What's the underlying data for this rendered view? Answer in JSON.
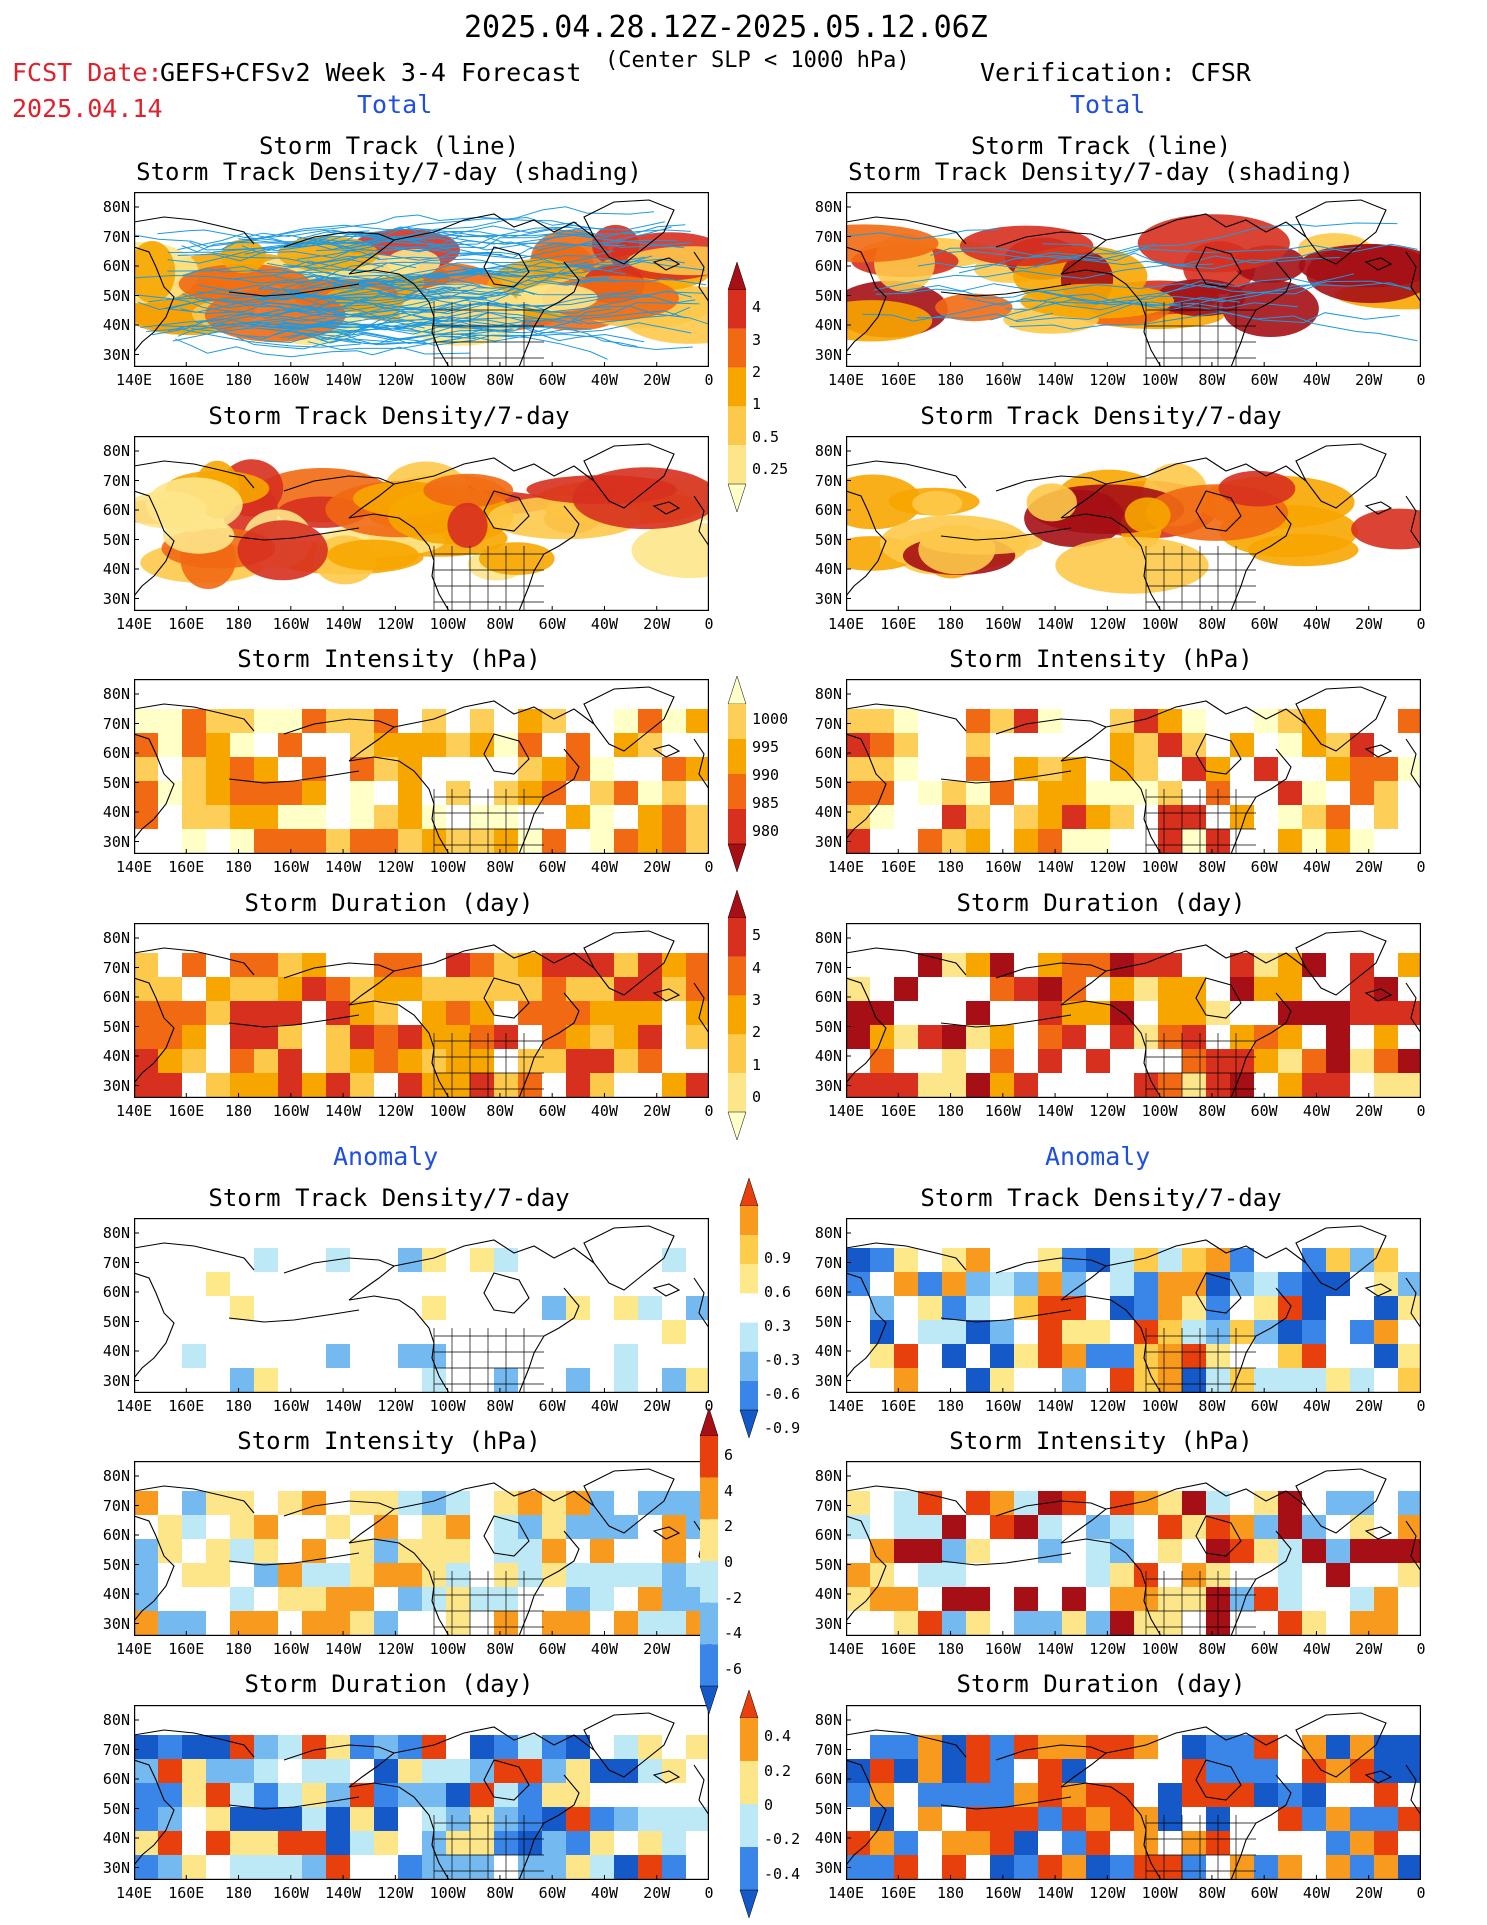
{
  "header": {
    "period": "2025.04.28.12Z-2025.05.12.06Z",
    "criterion": "(Center SLP < 1000 hPa)",
    "fcst_date_label": "FCST Date:",
    "fcst_date": "2025.04.14",
    "model": "GEFS+CFSv2 Week 3-4 Forecast",
    "verification": "Verification: CFSR"
  },
  "sections": {
    "total": "Total",
    "anomaly": "Anomaly"
  },
  "panel_titles": {
    "track_line": "Storm Track (line)",
    "track_shading": "Storm Track Density/7-day (shading)",
    "density": "Storm Track Density/7-day",
    "intensity": "Storm Intensity (hPa)",
    "duration": "Storm Duration (day)"
  },
  "axes": {
    "lat_labels": [
      "80N",
      "70N",
      "60N",
      "50N",
      "40N",
      "30N"
    ],
    "lon_labels": [
      "140E",
      "160E",
      "180",
      "160W",
      "140W",
      "120W",
      "100W",
      "80W",
      "60W",
      "40W",
      "20W",
      "0"
    ]
  },
  "colorbars": {
    "density_total": {
      "labels": [
        "4",
        "3",
        "2",
        "1",
        "0.5",
        "0.25"
      ],
      "colors": [
        "#a50f15",
        "#d7301f",
        "#f16913",
        "#f7a600",
        "#fdc94a",
        "#fde68a",
        "#ffffc8"
      ]
    },
    "intensity_total": {
      "labels": [
        "1000",
        "995",
        "990",
        "985",
        "980"
      ],
      "colors": [
        "#ffffc8",
        "#fdcf58",
        "#f7a600",
        "#f16913",
        "#d7301f",
        "#a50f15"
      ]
    },
    "duration_total": {
      "labels": [
        "5",
        "4",
        "3",
        "2",
        "1",
        "0"
      ],
      "colors": [
        "#a50f15",
        "#d7301f",
        "#f16913",
        "#f7a600",
        "#fdc94a",
        "#fde68a",
        "#ffffc8"
      ]
    },
    "density_anomaly": {
      "labels": [
        "0.9",
        "0.6",
        "0.3",
        "-0.3",
        "-0.6",
        "-0.9"
      ],
      "colors": [
        "#e8400c",
        "#f79a1e",
        "#fdcc4a",
        "#fde98a",
        "#ffffff",
        "#bde9f7",
        "#74b9f0",
        "#3a86e8",
        "#1558c8"
      ]
    },
    "intensity_anomaly": {
      "labels": [
        "6",
        "4",
        "2",
        "0",
        "-2",
        "-4",
        "-6"
      ],
      "colors": [
        "#a50f15",
        "#e8400c",
        "#f79a1e",
        "#fde68a",
        "#bde9f7",
        "#74b9f0",
        "#3a86e8",
        "#1558c8"
      ]
    },
    "duration_anomaly": {
      "labels": [
        "0.4",
        "0.2",
        "0",
        "-0.2",
        "-0.4"
      ],
      "colors": [
        "#e8400c",
        "#f79a1e",
        "#fde68a",
        "#bde9f7",
        "#3a86e8",
        "#1558c8"
      ]
    }
  }
}
